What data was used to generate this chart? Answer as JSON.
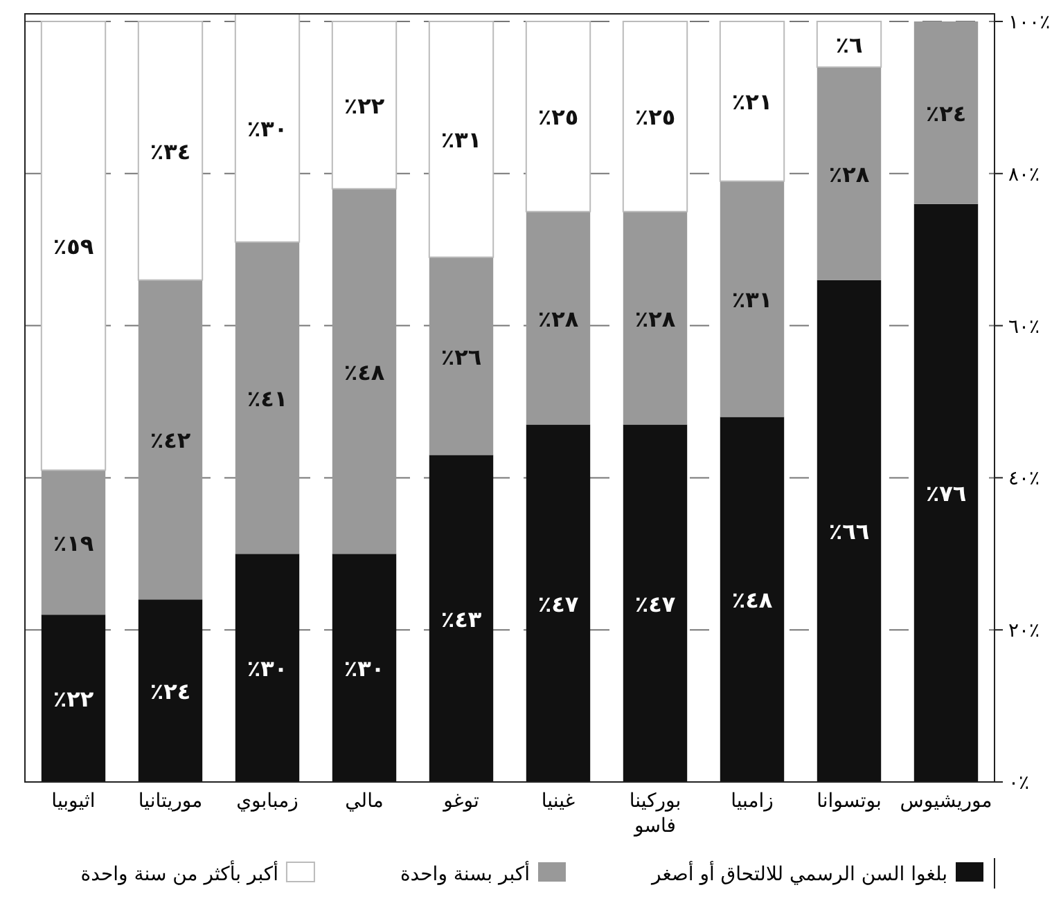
{
  "chart_data": {
    "type": "bar",
    "stacked": true,
    "categories": [
      "اثيوبيا",
      "موريتانيا",
      "زمبابوي",
      "مالي",
      "توغو",
      "غينيا",
      "بوركينا فاسو",
      "زامبيا",
      "بوتسوانا",
      "موريشيوس"
    ],
    "series": [
      {
        "name": "بلغوا السن الرسمي للالتحاق أو أصغر",
        "color": "#111111",
        "values": [
          22,
          24,
          30,
          30,
          43,
          47,
          47,
          48,
          66,
          76
        ],
        "value_labels": [
          "٢٢٪",
          "٢٤٪",
          "٣٠٪",
          "٣٠٪",
          "٤٣٪",
          "٤٧٪",
          "٤٧٪",
          "٤٨٪",
          "٦٦٪",
          "٧٦٪"
        ]
      },
      {
        "name": "أكبر بسنة واحدة",
        "color": "#999999",
        "values": [
          19,
          42,
          41,
          48,
          26,
          28,
          28,
          31,
          28,
          24
        ],
        "value_labels": [
          "١٩٪",
          "٤٢٪",
          "٤١٪",
          "٤٨٪",
          "٢٦٪",
          "٢٨٪",
          "٢٨٪",
          "٣١٪",
          "٢٨٪",
          "٢٤٪"
        ]
      },
      {
        "name": "أكبر بأكثر من سنة واحدة",
        "color": "#ffffff",
        "values": [
          59,
          34,
          30,
          22,
          31,
          25,
          25,
          21,
          6,
          null
        ],
        "value_labels": [
          "٥٩٪",
          "٣٤٪",
          "٣٠٪",
          "٢٢٪",
          "٣١٪",
          "٢٥٪",
          "٢٥٪",
          "٢١٪",
          "٦٪",
          null
        ]
      }
    ],
    "ylim": [
      0,
      101
    ],
    "yticks": [
      {
        "value": 0,
        "label": "٠٪"
      },
      {
        "value": 20,
        "label": "٢٠٪"
      },
      {
        "value": 40,
        "label": "٤٠٪"
      },
      {
        "value": 60,
        "label": "٦٠٪"
      },
      {
        "value": 80,
        "label": "٨٠٪"
      },
      {
        "value": 100,
        "label": "١٠٠٪"
      }
    ],
    "grid": "y",
    "legend": "bottom"
  }
}
